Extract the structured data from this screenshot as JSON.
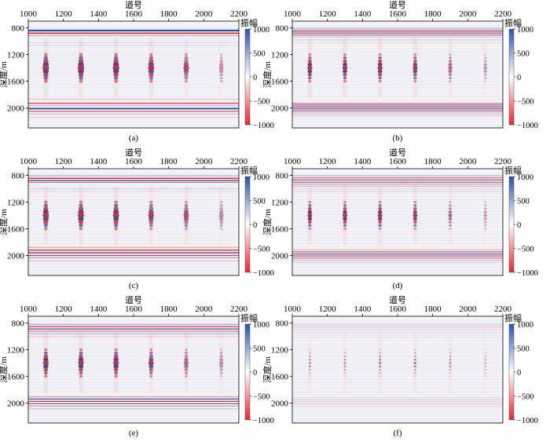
{
  "chart_data": [
    {
      "type": "heatmap",
      "panel_label": "(a)",
      "title": "",
      "xlabel": "道号",
      "ylabel": "深度/m",
      "xlim": [
        1000,
        2200
      ],
      "ylim": [
        700,
        2300
      ],
      "x_ticks": [
        "1000",
        "1200",
        "1400",
        "1600",
        "1800",
        "2000",
        "2200"
      ],
      "y_ticks": [
        "800",
        "1200",
        "1600",
        "2000"
      ],
      "colorbar": {
        "label": "振幅",
        "range": [
          -1000,
          1000
        ],
        "ticks": [
          "1000",
          "500",
          "0",
          "−500",
          "−1000"
        ]
      },
      "anomaly_traces": [
        1100,
        1300,
        1500,
        1700,
        1900,
        2100
      ],
      "anomaly_depth_range": [
        1200,
        1600
      ]
    },
    {
      "type": "heatmap",
      "panel_label": "(b)",
      "title": "",
      "xlabel": "道号",
      "ylabel": "深度/m",
      "xlim": [
        1000,
        2200
      ],
      "ylim": [
        700,
        2300
      ],
      "x_ticks": [
        "1000",
        "1200",
        "1400",
        "1600",
        "1800",
        "2000",
        "2200"
      ],
      "y_ticks": [
        "800",
        "1200",
        "1600",
        "2000"
      ],
      "colorbar": {
        "label": "振幅",
        "range": [
          -1000,
          1000
        ],
        "ticks": [
          "1000",
          "500",
          "0",
          "−500",
          "−1000"
        ]
      },
      "anomaly_traces": [
        1100,
        1300,
        1500,
        1700,
        1900,
        2100
      ],
      "anomaly_depth_range": [
        1200,
        1600
      ]
    },
    {
      "type": "heatmap",
      "panel_label": "(c)",
      "title": "",
      "xlabel": "道号",
      "ylabel": "深度/m",
      "xlim": [
        1000,
        2200
      ],
      "ylim": [
        700,
        2300
      ],
      "x_ticks": [
        "1000",
        "1200",
        "1400",
        "1600",
        "1800",
        "2000",
        "2200"
      ],
      "y_ticks": [
        "800",
        "1200",
        "1600",
        "2000"
      ],
      "colorbar": {
        "label": "振幅",
        "range": [
          -1000,
          1000
        ],
        "ticks": [
          "1000",
          "500",
          "0",
          "−500",
          "−1000"
        ]
      },
      "anomaly_traces": [
        1100,
        1300,
        1500,
        1700,
        1900,
        2100
      ],
      "anomaly_depth_range": [
        1200,
        1600
      ]
    },
    {
      "type": "heatmap",
      "panel_label": "(d)",
      "title": "",
      "xlabel": "道号",
      "ylabel": "深度/m",
      "xlim": [
        1000,
        2200
      ],
      "ylim": [
        700,
        2300
      ],
      "x_ticks": [
        "1000",
        "1200",
        "1400",
        "1600",
        "1800",
        "2000",
        "2200"
      ],
      "y_ticks": [
        "800",
        "1200",
        "1600",
        "2000"
      ],
      "colorbar": {
        "label": "振幅",
        "range": [
          -1000,
          1000
        ],
        "ticks": [
          "1000",
          "500",
          "0",
          "−500",
          "−1000"
        ]
      },
      "anomaly_traces": [
        1100,
        1300,
        1500,
        1700,
        1900,
        2100
      ],
      "anomaly_depth_range": [
        1200,
        1600
      ]
    },
    {
      "type": "heatmap",
      "panel_label": "(e)",
      "title": "",
      "xlabel": "道号",
      "ylabel": "深度/m",
      "xlim": [
        1000,
        2200
      ],
      "ylim": [
        700,
        2300
      ],
      "x_ticks": [
        "1000",
        "1200",
        "1400",
        "1600",
        "1800",
        "2000",
        "2200"
      ],
      "y_ticks": [
        "800",
        "1200",
        "1600",
        "2000"
      ],
      "colorbar": {
        "label": "振幅",
        "range": [
          -1000,
          1000
        ],
        "ticks": [
          "1000",
          "500",
          "0",
          "−500",
          "−1000"
        ]
      },
      "anomaly_traces": [
        1100,
        1300,
        1500,
        1700,
        1900,
        2100
      ],
      "anomaly_depth_range": [
        1200,
        1600
      ]
    },
    {
      "type": "heatmap",
      "panel_label": "(f)",
      "title": "",
      "xlabel": "道号",
      "ylabel": "深度/m",
      "xlim": [
        1000,
        2200
      ],
      "ylim": [
        700,
        2300
      ],
      "x_ticks": [
        "1000",
        "1200",
        "1400",
        "1600",
        "1800",
        "2000",
        "2200"
      ],
      "y_ticks": [
        "800",
        "1200",
        "1600",
        "2000"
      ],
      "colorbar": {
        "label": "振幅",
        "range": [
          -1000,
          1000
        ],
        "ticks": [
          "1000",
          "500",
          "0",
          "−500",
          "−1000"
        ]
      },
      "anomaly_traces": [
        1100,
        1300,
        1500,
        1700,
        1900,
        2100
      ],
      "anomaly_depth_range": [
        1200,
        1600
      ]
    }
  ],
  "colors": {
    "positive": "#2b55a8",
    "negative": "#e8262e",
    "neutral": "#ffffff"
  }
}
